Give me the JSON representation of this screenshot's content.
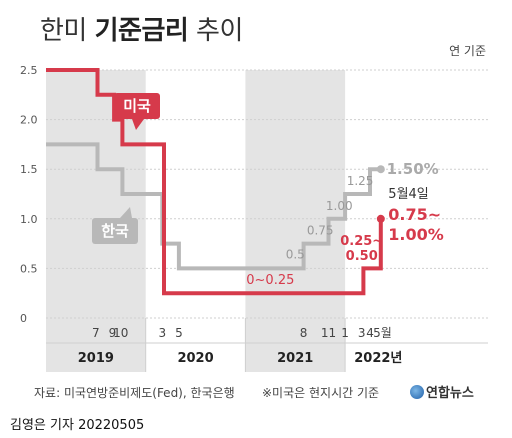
{
  "title": {
    "prefix": "한미 ",
    "bold": "기준금리",
    "suffix": " 추이"
  },
  "unit_label": "연 기준",
  "source": "자료: 미국연방준비제도(Fed), 한국은행",
  "note": "※미국은 현지시간 기준",
  "logo": "연합뉴스",
  "credit": "김영은 기자  20220505",
  "colors": {
    "us": "#d63a4b",
    "korea": "#b8b8b8",
    "shade": "#e4e4e4"
  },
  "chart_data": {
    "type": "line",
    "step": true,
    "ylim": [
      0,
      2.5
    ],
    "yticks": [
      "0",
      "0.5",
      "1.0",
      "1.5",
      "2.0",
      "2.5"
    ],
    "x_unit": "month index from 2019-01",
    "xlim": [
      0,
      53.2
    ],
    "year_labels": [
      {
        "label": "2019",
        "center": 6
      },
      {
        "label": "2020",
        "center": 18
      },
      {
        "label": "2021",
        "center": 30
      },
      {
        "label": "2022년",
        "center": 40
      }
    ],
    "shaded_years": [
      [
        0,
        12
      ],
      [
        24,
        36
      ]
    ],
    "month_ticks": [
      {
        "x": 6,
        "label": "7"
      },
      {
        "x": 8,
        "label": "9"
      },
      {
        "x": 9,
        "label": "10"
      },
      {
        "x": 14,
        "label": "3"
      },
      {
        "x": 16,
        "label": "5"
      },
      {
        "x": 31,
        "label": "8"
      },
      {
        "x": 34,
        "label": "11"
      },
      {
        "x": 36,
        "label": "1"
      },
      {
        "x": 38,
        "label": "3"
      },
      {
        "x": 39,
        "label": "4"
      },
      {
        "x": 40.5,
        "label": "5월"
      }
    ],
    "series": [
      {
        "name": "미국",
        "points": [
          [
            0,
            2.5
          ],
          [
            6.2,
            2.5
          ],
          [
            6.2,
            2.25
          ],
          [
            8.2,
            2.25
          ],
          [
            8.2,
            2.0
          ],
          [
            9.2,
            2.0
          ],
          [
            9.2,
            1.75
          ],
          [
            14.2,
            1.75
          ],
          [
            14.2,
            0.25
          ],
          [
            38.2,
            0.25
          ],
          [
            38.2,
            0.5
          ],
          [
            40.3,
            0.5
          ],
          [
            40.3,
            1.0
          ]
        ],
        "end_value": 1.0
      },
      {
        "name": "한국",
        "points": [
          [
            0,
            1.75
          ],
          [
            6.2,
            1.75
          ],
          [
            6.2,
            1.5
          ],
          [
            9.2,
            1.5
          ],
          [
            9.2,
            1.25
          ],
          [
            14.0,
            1.25
          ],
          [
            14.0,
            0.75
          ],
          [
            16.0,
            0.75
          ],
          [
            16.0,
            0.5
          ],
          [
            31.0,
            0.5
          ],
          [
            31.0,
            0.75
          ],
          [
            34.0,
            0.75
          ],
          [
            34.0,
            1.0
          ],
          [
            36.0,
            1.0
          ],
          [
            36.0,
            1.25
          ],
          [
            39.0,
            1.25
          ],
          [
            39.0,
            1.5
          ],
          [
            40.3,
            1.5
          ]
        ],
        "end_value": 1.5
      }
    ],
    "annotations": [
      {
        "text": "0.5",
        "x": 30,
        "y": 0.5,
        "series": "한국"
      },
      {
        "text": "0.75",
        "x": 33,
        "y": 0.75,
        "series": "한국"
      },
      {
        "text": "1.00",
        "x": 35,
        "y": 1.0,
        "series": "한국"
      },
      {
        "text": "1.25",
        "x": 37.5,
        "y": 1.25,
        "series": "한국"
      },
      {
        "text": "1.50%",
        "x": 42.5,
        "y": 1.5,
        "series": "한국"
      },
      {
        "text": "0~0.25",
        "x": 27,
        "y": 0.25,
        "series": "미국"
      },
      {
        "text": "0.25~",
        "x": 38,
        "y": 0.5,
        "series": "미국"
      },
      {
        "text": "0.50",
        "x": 38,
        "y": 0.5,
        "series": "미국"
      },
      {
        "text": "5월4일",
        "x": 42,
        "y": 1.0
      },
      {
        "text": "0.75~",
        "x": 42,
        "y": 1.0,
        "series": "미국"
      },
      {
        "text": "1.00%",
        "x": 42,
        "y": 1.0,
        "series": "미국"
      }
    ]
  }
}
